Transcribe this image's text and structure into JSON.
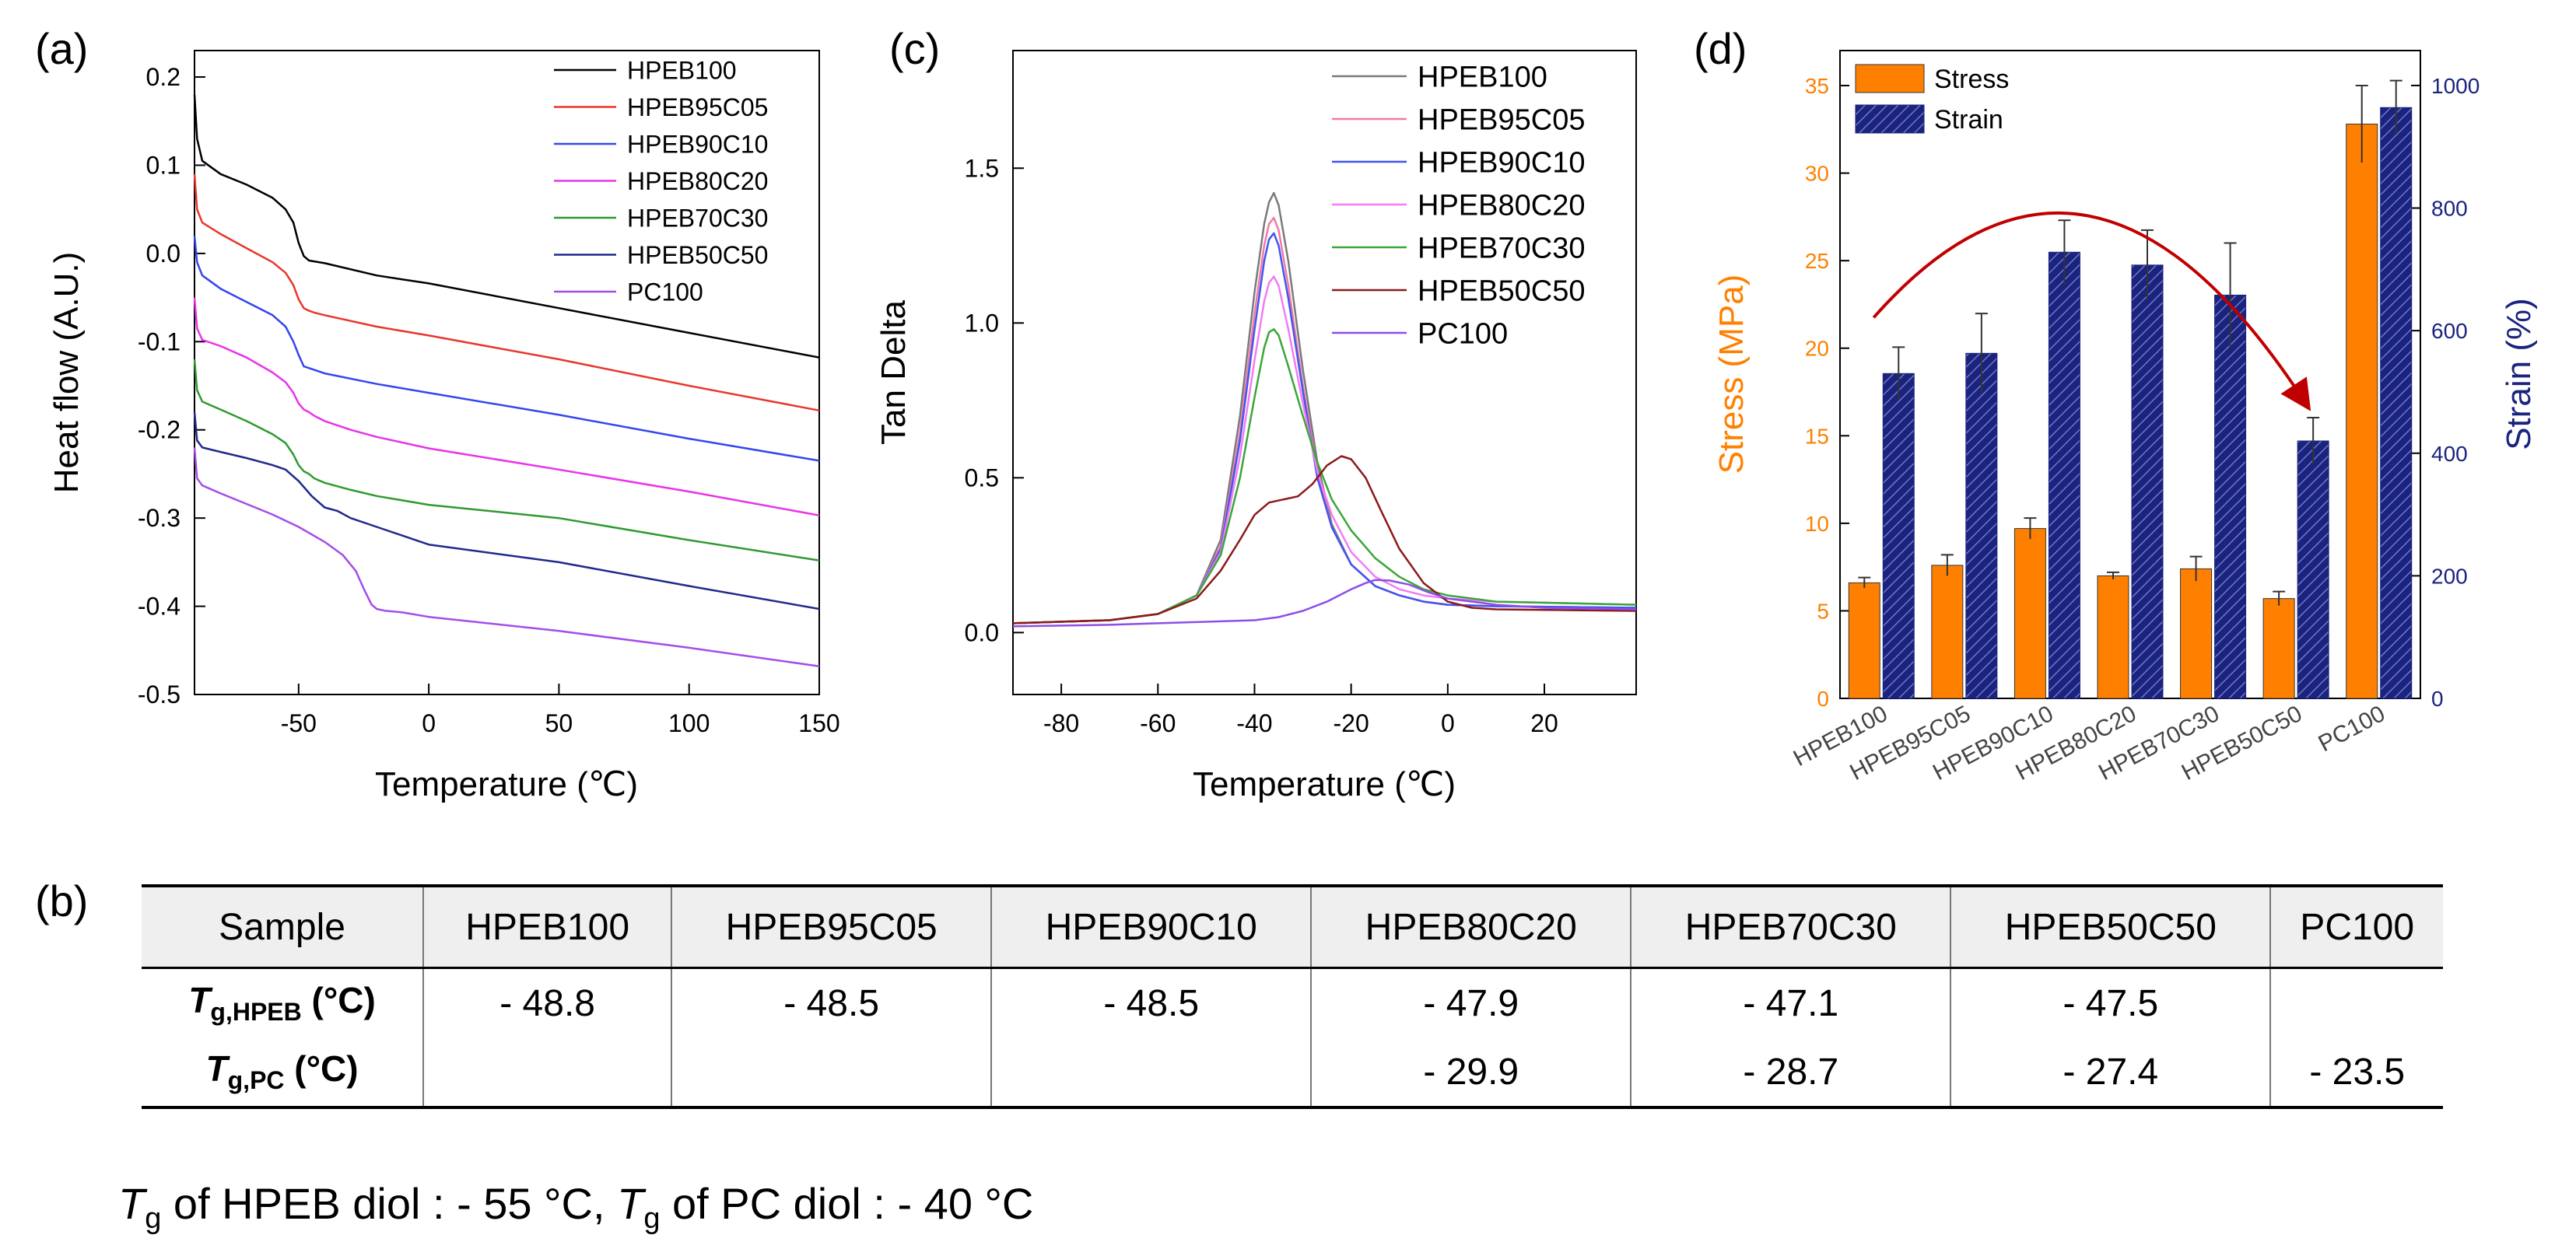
{
  "panels": {
    "a": "(a)",
    "b": "(b)",
    "c": "(c)",
    "d": "(d)"
  },
  "chart_data": [
    {
      "id": "a",
      "type": "line",
      "title": "",
      "xlabel": "Temperature (℃)",
      "ylabel": "Heat flow (A.U.)",
      "xlim": [
        -90,
        150
      ],
      "ylim": [
        -0.5,
        0.23
      ],
      "xticks": [
        -50,
        0,
        50,
        100,
        150
      ],
      "yticks": [
        0.2,
        0.1,
        0.0,
        -0.1,
        -0.2,
        -0.3,
        -0.4,
        -0.5
      ],
      "ytick_labels": [
        "0.2",
        "0.1",
        "0.0",
        "-0.1",
        "-0.2",
        "-0.3",
        "-0.4",
        "-0.5"
      ],
      "legend_position": "top-right",
      "series": [
        {
          "name": "HPEB100",
          "color": "#000000",
          "x": [
            -90,
            -89,
            -87,
            -80,
            -70,
            -60,
            -55,
            -52,
            -50,
            -48,
            -46,
            -44,
            -40,
            -20,
            0,
            50,
            100,
            150
          ],
          "y": [
            0.18,
            0.13,
            0.105,
            0.09,
            0.078,
            0.063,
            0.05,
            0.035,
            0.012,
            -0.003,
            -0.008,
            -0.009,
            -0.011,
            -0.025,
            -0.034,
            -0.062,
            -0.09,
            -0.118
          ]
        },
        {
          "name": "HPEB95C05",
          "color": "#e8372c",
          "x": [
            -90,
            -89,
            -87,
            -80,
            -70,
            -60,
            -55,
            -52,
            -50,
            -48,
            -46,
            -44,
            -40,
            -20,
            0,
            50,
            100,
            150
          ],
          "y": [
            0.09,
            0.05,
            0.035,
            0.022,
            0.006,
            -0.01,
            -0.022,
            -0.036,
            -0.052,
            -0.062,
            -0.065,
            -0.067,
            -0.07,
            -0.083,
            -0.093,
            -0.12,
            -0.15,
            -0.178
          ]
        },
        {
          "name": "HPEB90C10",
          "color": "#3446ee",
          "x": [
            -90,
            -89,
            -87,
            -80,
            -70,
            -60,
            -55,
            -52,
            -50,
            -48,
            -46,
            -44,
            -40,
            -20,
            0,
            50,
            100,
            150
          ],
          "y": [
            0.02,
            -0.01,
            -0.025,
            -0.04,
            -0.055,
            -0.07,
            -0.083,
            -0.1,
            -0.115,
            -0.128,
            -0.13,
            -0.132,
            -0.136,
            -0.148,
            -0.158,
            -0.183,
            -0.21,
            -0.235
          ]
        },
        {
          "name": "HPEB80C20",
          "color": "#e833e8",
          "x": [
            -90,
            -89,
            -87,
            -80,
            -70,
            -60,
            -55,
            -52,
            -50,
            -48,
            -46,
            -44,
            -40,
            -30,
            -20,
            0,
            50,
            100,
            150
          ],
          "y": [
            -0.05,
            -0.085,
            -0.098,
            -0.105,
            -0.118,
            -0.135,
            -0.146,
            -0.158,
            -0.17,
            -0.177,
            -0.18,
            -0.184,
            -0.19,
            -0.2,
            -0.208,
            -0.221,
            -0.245,
            -0.27,
            -0.297
          ]
        },
        {
          "name": "HPEB70C30",
          "color": "#2f9a2f",
          "x": [
            -90,
            -89,
            -87,
            -80,
            -70,
            -60,
            -55,
            -52,
            -50,
            -48,
            -46,
            -44,
            -40,
            -30,
            -20,
            0,
            50,
            100,
            150
          ],
          "y": [
            -0.12,
            -0.155,
            -0.168,
            -0.177,
            -0.19,
            -0.205,
            -0.215,
            -0.228,
            -0.24,
            -0.247,
            -0.25,
            -0.255,
            -0.26,
            -0.268,
            -0.275,
            -0.285,
            -0.3,
            -0.325,
            -0.348
          ]
        },
        {
          "name": "HPEB50C50",
          "color": "#1f2a8c",
          "x": [
            -90,
            -89,
            -87,
            -80,
            -70,
            -60,
            -55,
            -50,
            -45,
            -40,
            -35,
            -30,
            -20,
            0,
            50,
            100,
            150
          ],
          "y": [
            -0.18,
            -0.212,
            -0.22,
            -0.225,
            -0.232,
            -0.24,
            -0.245,
            -0.258,
            -0.275,
            -0.288,
            -0.292,
            -0.3,
            -0.31,
            -0.33,
            -0.35,
            -0.377,
            -0.403
          ]
        },
        {
          "name": "PC100",
          "color": "#a44de8",
          "x": [
            -90,
            -89,
            -87,
            -80,
            -70,
            -60,
            -50,
            -40,
            -33,
            -28,
            -25,
            -22,
            -20,
            -17,
            -10,
            0,
            50,
            100,
            150
          ],
          "y": [
            -0.22,
            -0.255,
            -0.263,
            -0.272,
            -0.284,
            -0.296,
            -0.31,
            -0.327,
            -0.342,
            -0.36,
            -0.38,
            -0.398,
            -0.403,
            -0.405,
            -0.407,
            -0.412,
            -0.428,
            -0.447,
            -0.468
          ]
        }
      ]
    },
    {
      "id": "c",
      "type": "line",
      "title": "",
      "xlabel": "Temperature (℃)",
      "ylabel": "Tan Delta",
      "xlim": [
        -90,
        39
      ],
      "ylim": [
        -0.2,
        1.88
      ],
      "xticks": [
        -80,
        -60,
        -40,
        -20,
        0,
        20
      ],
      "yticks": [
        0.0,
        0.5,
        1.0,
        1.5
      ],
      "ytick_labels": [
        "0.0",
        "0.5",
        "1.0",
        "1.5"
      ],
      "legend_position": "top-right",
      "series": [
        {
          "name": "HPEB100",
          "color": "#7a7a7a",
          "x": [
            -90,
            -70,
            -60,
            -52,
            -47,
            -43,
            -40,
            -38,
            -37,
            -36,
            -35,
            -33,
            -30,
            -27,
            -24,
            -20,
            -15,
            -10,
            -5,
            0,
            10,
            39
          ],
          "y": [
            0.03,
            0.04,
            0.06,
            0.12,
            0.3,
            0.7,
            1.1,
            1.32,
            1.39,
            1.42,
            1.38,
            1.2,
            0.85,
            0.55,
            0.35,
            0.22,
            0.15,
            0.12,
            0.1,
            0.09,
            0.085,
            0.08
          ]
        },
        {
          "name": "HPEB95C05",
          "color": "#f07aa8",
          "x": [
            -90,
            -70,
            -60,
            -52,
            -47,
            -43,
            -40,
            -38,
            -37,
            -36,
            -35,
            -33,
            -30,
            -27,
            -24,
            -20,
            -15,
            -10,
            -5,
            0,
            10,
            39
          ],
          "y": [
            0.03,
            0.04,
            0.06,
            0.12,
            0.28,
            0.65,
            1.03,
            1.25,
            1.32,
            1.34,
            1.3,
            1.12,
            0.8,
            0.52,
            0.34,
            0.22,
            0.15,
            0.12,
            0.1,
            0.09,
            0.085,
            0.08
          ]
        },
        {
          "name": "HPEB90C10",
          "color": "#4155f0",
          "x": [
            -90,
            -70,
            -60,
            -52,
            -47,
            -43,
            -40,
            -38,
            -37,
            -36,
            -35,
            -33,
            -30,
            -27,
            -24,
            -20,
            -15,
            -10,
            -5,
            0,
            10,
            39
          ],
          "y": [
            0.03,
            0.04,
            0.06,
            0.12,
            0.27,
            0.62,
            0.98,
            1.2,
            1.27,
            1.29,
            1.25,
            1.08,
            0.78,
            0.5,
            0.34,
            0.22,
            0.15,
            0.12,
            0.1,
            0.09,
            0.085,
            0.08
          ]
        },
        {
          "name": "HPEB80C20",
          "color": "#f27cf2",
          "x": [
            -90,
            -70,
            -60,
            -52,
            -47,
            -43,
            -40,
            -38,
            -37,
            -36,
            -35,
            -33,
            -30,
            -27,
            -24,
            -20,
            -15,
            -10,
            -5,
            0,
            10,
            39
          ],
          "y": [
            0.03,
            0.04,
            0.06,
            0.12,
            0.26,
            0.57,
            0.88,
            1.07,
            1.13,
            1.15,
            1.12,
            0.98,
            0.74,
            0.52,
            0.38,
            0.26,
            0.18,
            0.14,
            0.12,
            0.11,
            0.1,
            0.09
          ]
        },
        {
          "name": "HPEB70C30",
          "color": "#3aa63a",
          "x": [
            -90,
            -70,
            -60,
            -52,
            -47,
            -43,
            -40,
            -38,
            -37,
            -36,
            -35,
            -33,
            -30,
            -27,
            -24,
            -20,
            -15,
            -10,
            -5,
            0,
            10,
            39
          ],
          "y": [
            0.03,
            0.04,
            0.06,
            0.12,
            0.25,
            0.5,
            0.76,
            0.92,
            0.97,
            0.98,
            0.96,
            0.86,
            0.7,
            0.55,
            0.43,
            0.33,
            0.24,
            0.18,
            0.14,
            0.12,
            0.1,
            0.09
          ]
        },
        {
          "name": "HPEB50C50",
          "color": "#8b1a1a",
          "x": [
            -90,
            -70,
            -60,
            -52,
            -47,
            -43,
            -40,
            -37,
            -34,
            -31,
            -28,
            -25,
            -22,
            -20,
            -17,
            -14,
            -10,
            -5,
            0,
            5,
            10,
            39
          ],
          "y": [
            0.03,
            0.04,
            0.06,
            0.11,
            0.2,
            0.3,
            0.38,
            0.42,
            0.43,
            0.44,
            0.48,
            0.54,
            0.57,
            0.56,
            0.5,
            0.4,
            0.27,
            0.16,
            0.1,
            0.08,
            0.075,
            0.07
          ]
        },
        {
          "name": "PC100",
          "color": "#8e4ee8",
          "x": [
            -90,
            -70,
            -60,
            -50,
            -40,
            -35,
            -30,
            -25,
            -20,
            -17,
            -15,
            -12,
            -8,
            -4,
            0,
            10,
            20,
            39
          ],
          "y": [
            0.02,
            0.025,
            0.03,
            0.035,
            0.04,
            0.05,
            0.07,
            0.1,
            0.14,
            0.16,
            0.17,
            0.168,
            0.155,
            0.13,
            0.11,
            0.09,
            0.08,
            0.075
          ]
        }
      ]
    },
    {
      "id": "d",
      "type": "bar",
      "title": "",
      "xlabel": "",
      "ylabel": "Stress (MPa)",
      "y2label": "Strain (%)",
      "ylim": [
        0,
        37
      ],
      "y2lim": [
        0,
        1057
      ],
      "yticks": [
        0,
        5,
        10,
        15,
        20,
        25,
        30,
        35
      ],
      "y2ticks": [
        0,
        200,
        400,
        600,
        800,
        1000
      ],
      "categories": [
        "HPEB100",
        "HPEB95C05",
        "HPEB90C10",
        "HPEB80C20",
        "HPEB70C30",
        "HPEB50C50",
        "PC100"
      ],
      "legend_position": "top-left",
      "series": [
        {
          "name": "Stress",
          "axis": "left",
          "color": "#ff8000",
          "values": [
            6.6,
            7.6,
            9.7,
            7.0,
            7.4,
            5.7,
            32.8
          ],
          "errors": [
            0.3,
            0.6,
            0.6,
            0.2,
            0.7,
            0.4,
            2.2
          ]
        },
        {
          "name": "Strain",
          "axis": "right",
          "color": "#1a237e",
          "values": [
            530,
            563,
            728,
            707,
            658,
            420,
            964
          ],
          "errors": [
            43,
            65,
            52,
            57,
            85,
            38,
            44
          ]
        }
      ],
      "left_axis_color": "#ff8000",
      "right_axis_color": "#1a237e",
      "arrow_color": "#c00000"
    }
  ],
  "table": {
    "headers": [
      "Sample",
      "HPEB100",
      "HPEB95C05",
      "HPEB90C10",
      "HPEB80C20",
      "HPEB70C30",
      "HPEB50C50",
      "PC100"
    ],
    "rows": [
      {
        "label_symbol": "T",
        "label_sub": "g,HPEB",
        "label_unit": "(°C)",
        "values": [
          "- 48.8",
          "- 48.5",
          "- 48.5",
          "- 47.9",
          "- 47.1",
          "- 47.5",
          ""
        ]
      },
      {
        "label_symbol": "T",
        "label_sub": "g,PC",
        "label_unit": "(°C)",
        "values": [
          "",
          "",
          "",
          "- 29.9",
          "- 28.7",
          "- 27.4",
          "- 23.5"
        ]
      }
    ]
  },
  "footnote": {
    "t1": "T",
    "s1": "g",
    "p1": " of HPEB diol : - 55 °C, ",
    "t2": "T",
    "s2": "g",
    "p2": " of PC diol : - 40 °C"
  }
}
